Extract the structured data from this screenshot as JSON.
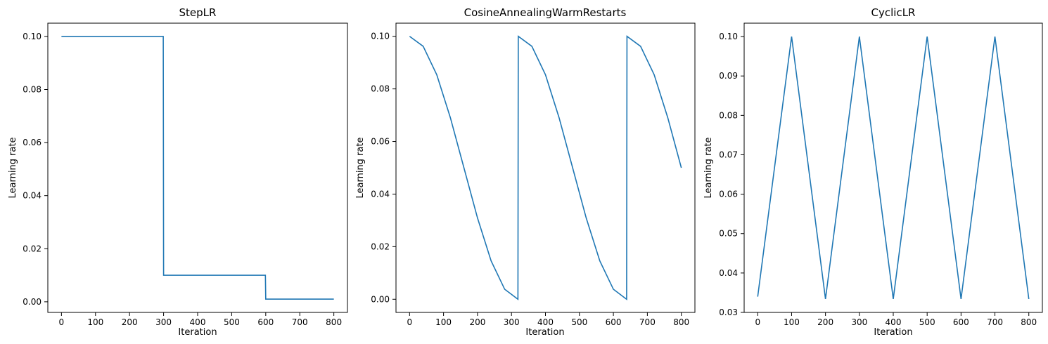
{
  "chart_data": [
    {
      "type": "line",
      "title": "StepLR",
      "xlabel": "Iteration",
      "ylabel": "Learning rate",
      "xlim": [
        -40,
        840
      ],
      "ylim": [
        -0.004,
        0.105
      ],
      "xticks": [
        0,
        100,
        200,
        300,
        400,
        500,
        600,
        700,
        800
      ],
      "yticks": [
        0.0,
        0.02,
        0.04,
        0.06,
        0.08,
        0.1
      ],
      "ytick_labels": [
        "0.00",
        "0.02",
        "0.04",
        "0.06",
        "0.08",
        "0.10"
      ],
      "line_color": "#1f77b4",
      "series": [
        {
          "x": [
            0,
            299,
            300,
            599,
            600,
            800
          ],
          "y": [
            0.1,
            0.1,
            0.01,
            0.01,
            0.001,
            0.001
          ]
        }
      ]
    },
    {
      "type": "line",
      "title": "CosineAnnealingWarmRestarts",
      "xlabel": "Iteration",
      "ylabel": "Learning rate",
      "xlim": [
        -40,
        840
      ],
      "ylim": [
        -0.005,
        0.105
      ],
      "xticks": [
        0,
        100,
        200,
        300,
        400,
        500,
        600,
        700,
        800
      ],
      "yticks": [
        0.0,
        0.02,
        0.04,
        0.06,
        0.08,
        0.1
      ],
      "ytick_labels": [
        "0.00",
        "0.02",
        "0.04",
        "0.06",
        "0.08",
        "0.10"
      ],
      "line_color": "#1f77b4",
      "series": [
        {
          "x": [
            0,
            40,
            80,
            120,
            160,
            200,
            240,
            280,
            319,
            320,
            360,
            400,
            440,
            480,
            520,
            560,
            600,
            639,
            640,
            680,
            720,
            760,
            800
          ],
          "y": [
            0.1,
            0.0962,
            0.0854,
            0.0691,
            0.05,
            0.0309,
            0.0146,
            0.0038,
            0.0,
            0.1,
            0.0962,
            0.0854,
            0.0691,
            0.05,
            0.0309,
            0.0146,
            0.0038,
            0.0,
            0.1,
            0.0962,
            0.0854,
            0.0691,
            0.05
          ]
        }
      ]
    },
    {
      "type": "line",
      "title": "CyclicLR",
      "xlabel": "Iteration",
      "ylabel": "Learning rate",
      "xlim": [
        -40,
        840
      ],
      "ylim": [
        0.03,
        0.1034
      ],
      "xticks": [
        0,
        100,
        200,
        300,
        400,
        500,
        600,
        700,
        800
      ],
      "yticks": [
        0.03,
        0.04,
        0.05,
        0.06,
        0.07,
        0.08,
        0.09,
        0.1
      ],
      "ytick_labels": [
        "0.03",
        "0.04",
        "0.05",
        "0.06",
        "0.07",
        "0.08",
        "0.09",
        "0.10"
      ],
      "line_color": "#1f77b4",
      "series": [
        {
          "x": [
            0,
            100,
            200,
            300,
            400,
            500,
            600,
            700,
            800
          ],
          "y": [
            0.034,
            0.1,
            0.0334,
            0.1,
            0.0334,
            0.1,
            0.0334,
            0.1,
            0.0334
          ]
        }
      ]
    }
  ]
}
